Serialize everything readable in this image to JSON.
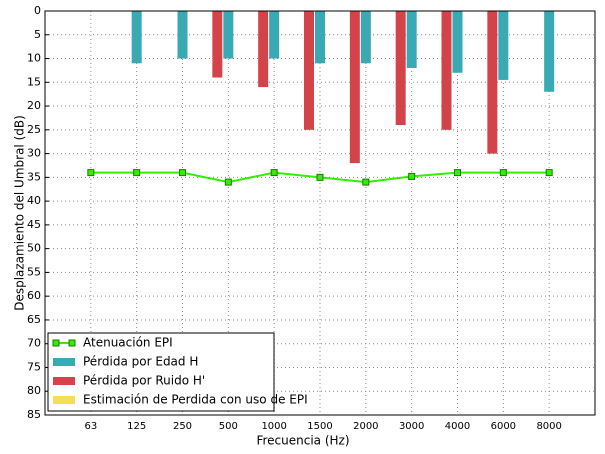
{
  "chart_data": {
    "type": "bar_line",
    "xlabel": "Frecuencia (Hz)",
    "ylabel": "Desplazamiento del Umbral (dB)",
    "categories": [
      "63",
      "125",
      "250",
      "500",
      "1000",
      "1500",
      "2000",
      "3000",
      "4000",
      "6000",
      "8000"
    ],
    "series": [
      {
        "name": "Atenuación EPI",
        "kind": "line",
        "color": "#33ee00",
        "values": [
          34,
          34,
          34,
          36,
          34,
          35,
          36,
          34.8,
          34,
          34,
          34
        ]
      },
      {
        "name": "Pérdida por Edad H",
        "kind": "bar",
        "color": "#39a9b4",
        "values": [
          null,
          11,
          10,
          10,
          10,
          11,
          11,
          12,
          13,
          14.5,
          17
        ]
      },
      {
        "name": "Pérdida por Ruido H'",
        "kind": "bar",
        "color": "#d5434a",
        "values": [
          null,
          null,
          null,
          14,
          16,
          25,
          32,
          24,
          25,
          30,
          null
        ]
      },
      {
        "name": "Estimación de Perdida con uso de EPI",
        "kind": "bar",
        "color": "#f7dd57",
        "values": [
          null,
          null,
          null,
          null,
          null,
          null,
          null,
          null,
          null,
          null,
          null
        ]
      }
    ],
    "ylim": [
      85,
      0
    ],
    "yticks": [
      0,
      5,
      10,
      15,
      20,
      25,
      30,
      35,
      40,
      45,
      50,
      55,
      60,
      65,
      70,
      75,
      80,
      85
    ],
    "grid": true,
    "legend": "lower left"
  }
}
